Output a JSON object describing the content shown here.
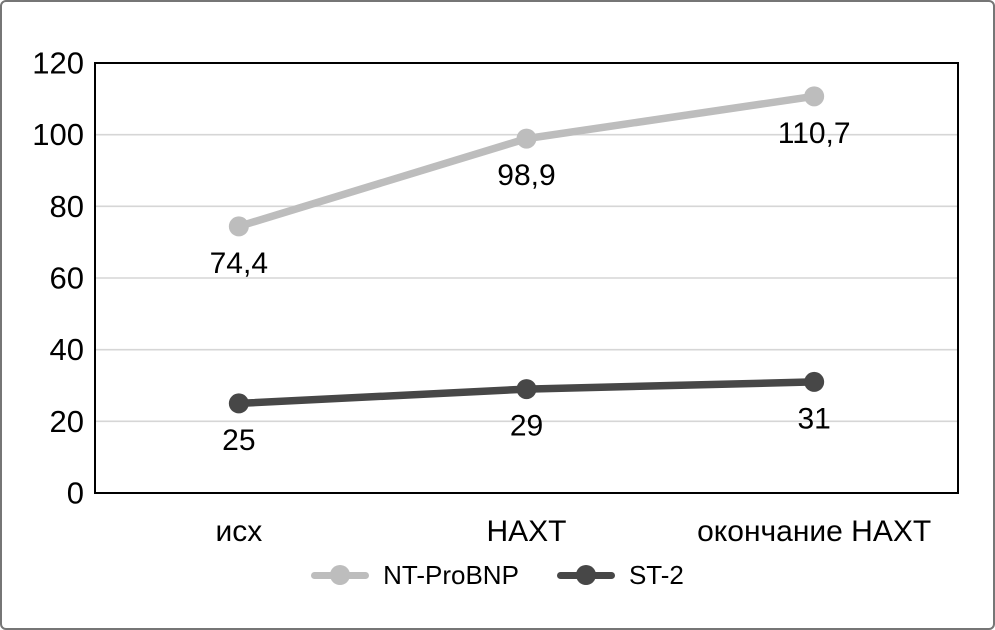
{
  "chart_data": {
    "type": "line",
    "categories": [
      "исх",
      "НАХТ",
      "окончание НАХТ"
    ],
    "series": [
      {
        "name": "NT-ProBNP",
        "values": [
          74.4,
          98.9,
          110.7
        ],
        "value_labels": [
          "74,4",
          "98,9",
          "110,7"
        ],
        "color": "#bdbdbd"
      },
      {
        "name": "ST-2",
        "values": [
          25,
          29,
          31
        ],
        "value_labels": [
          "25",
          "29",
          "31"
        ],
        "color": "#474747"
      }
    ],
    "title": "",
    "xlabel": "",
    "ylabel": "",
    "ylim": [
      0,
      120
    ],
    "y_ticks": [
      0,
      20,
      40,
      60,
      80,
      100,
      120
    ],
    "grid": true,
    "legend_position": "bottom"
  },
  "colors": {
    "gridline": "#d6d6d6",
    "plot_border": "#000000",
    "frame_border": "#767676",
    "background": "#ffffff",
    "label_text": "#000000"
  }
}
